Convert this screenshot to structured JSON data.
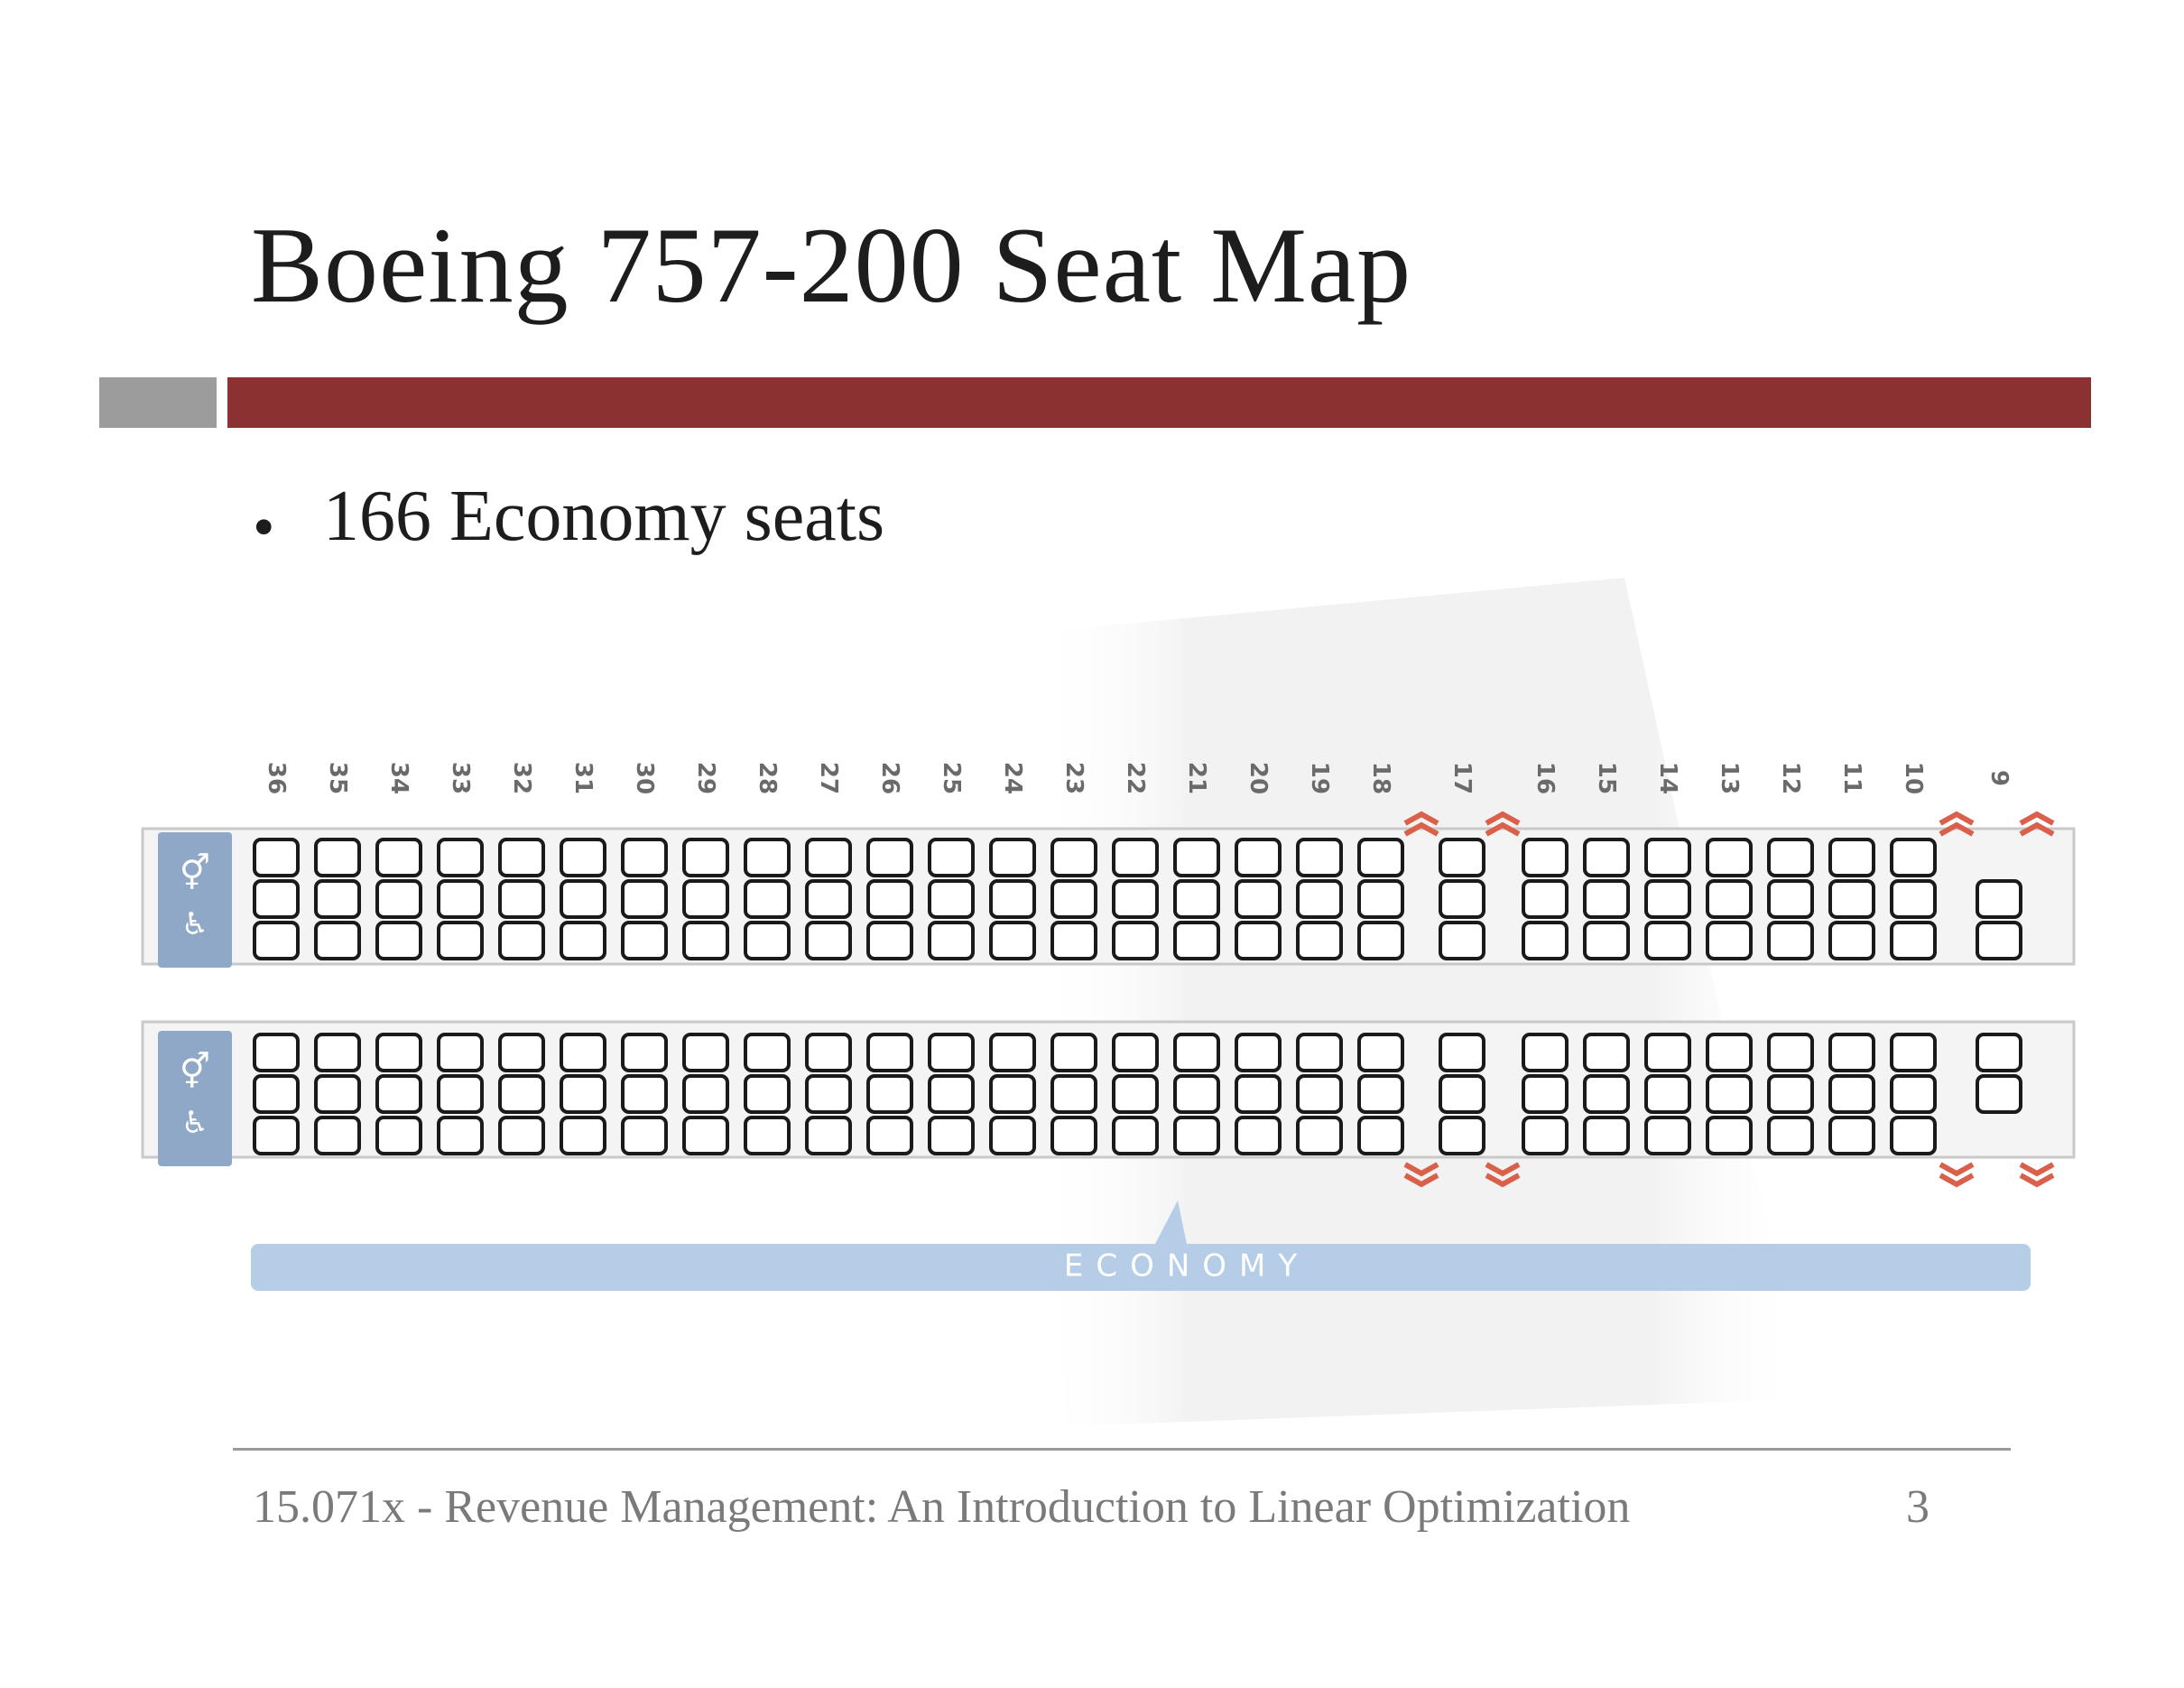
{
  "slide": {
    "title": "Boeing 757-200 Seat Map",
    "bullet_marker": "•",
    "bullet": "166 Economy seats",
    "footer": "15.071x - Revenue Management: An Introduction to Linear Optimization",
    "page_number": "3"
  },
  "seat_map": {
    "rows": [
      "36",
      "35",
      "34",
      "33",
      "32",
      "31",
      "30",
      "29",
      "28",
      "27",
      "26",
      "25",
      "24",
      "23",
      "22",
      "21",
      "20",
      "19",
      "18",
      "17",
      "16",
      "15",
      "14",
      "13",
      "12",
      "11",
      "10",
      "9"
    ],
    "cabin_label": "ECONOMY",
    "upper_seats_per_row": 3,
    "lower_seats_per_row": 3,
    "row_9_upper_seats": 2,
    "row_9_lower_seats": 2,
    "colors": {
      "accent_red": "#8b3132",
      "bar_grey": "#9c9c9c",
      "cabin_bar": "#b5cde6",
      "lavatory": "#8fa8c8",
      "exit_arrow": "#d9604a"
    },
    "icons": [
      "lavatory-icon",
      "exit-arrow-icon"
    ]
  }
}
